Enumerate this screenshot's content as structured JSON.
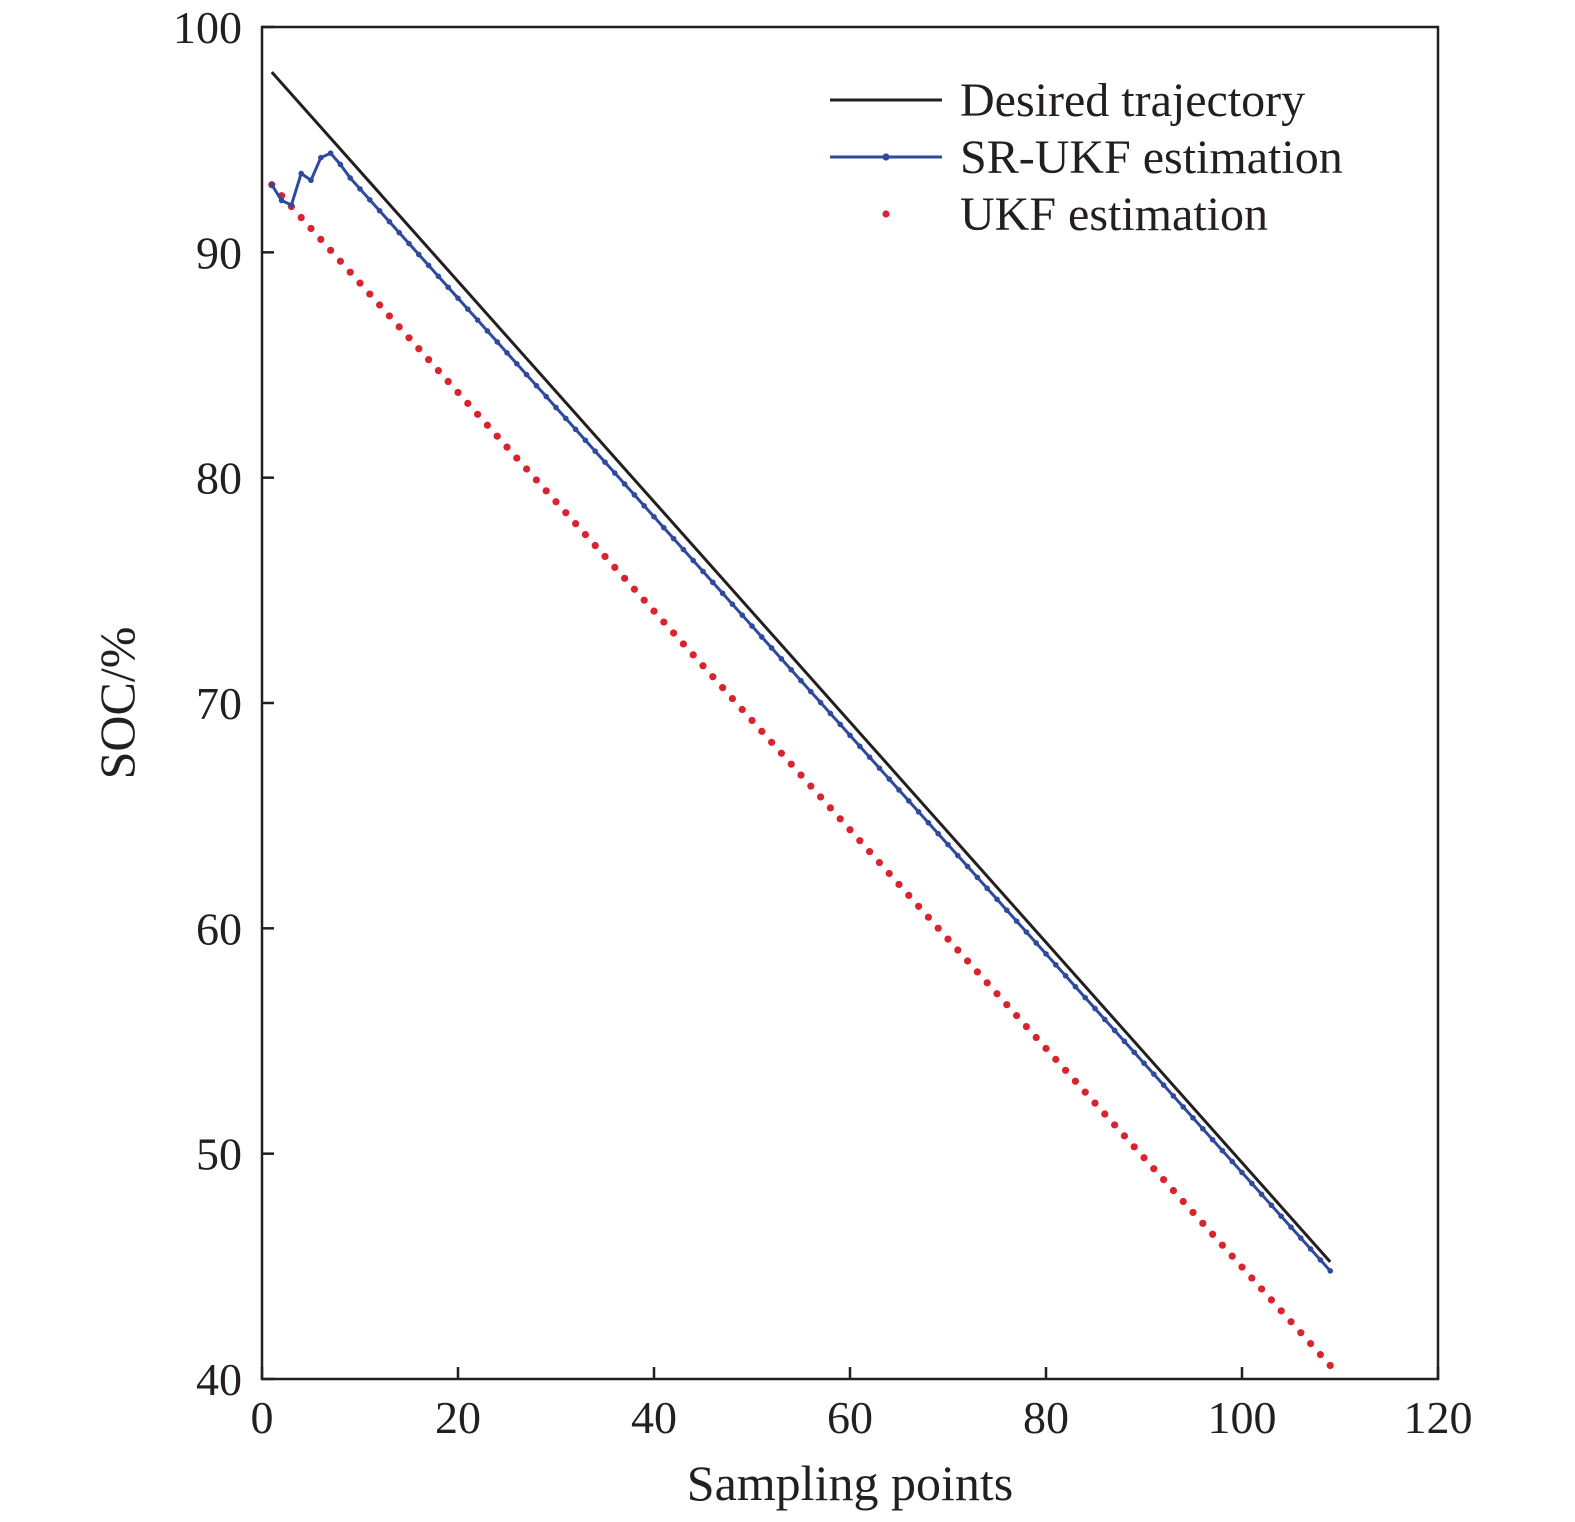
{
  "chart_data": {
    "type": "line",
    "title": "",
    "xlabel": "Sampling points",
    "ylabel": "SOC/%",
    "xlim": [
      0,
      120
    ],
    "ylim": [
      40,
      100
    ],
    "xticks": [
      0,
      20,
      40,
      60,
      80,
      100,
      120
    ],
    "yticks": [
      40,
      50,
      60,
      70,
      80,
      90,
      100
    ],
    "grid": false,
    "legend_position": "top-right",
    "series": [
      {
        "name": "Desired trajectory",
        "style": "solid-line",
        "color": "#231f20",
        "x": [
          1,
          109
        ],
        "y": [
          98.0,
          45.2
        ]
      },
      {
        "name": "SR-UKF estimation",
        "style": "line-with-dots",
        "color": "#2e4a9e",
        "x": [
          1,
          2,
          3,
          4,
          5,
          6,
          7,
          8,
          9,
          109
        ],
        "y": [
          93.0,
          92.3,
          92.1,
          93.5,
          93.2,
          94.2,
          94.4,
          93.9,
          93.3,
          44.8
        ]
      },
      {
        "name": "UKF estimation",
        "style": "dotted",
        "color": "#d9232e",
        "x": [
          1,
          109
        ],
        "y": [
          93.0,
          40.6
        ]
      }
    ]
  }
}
